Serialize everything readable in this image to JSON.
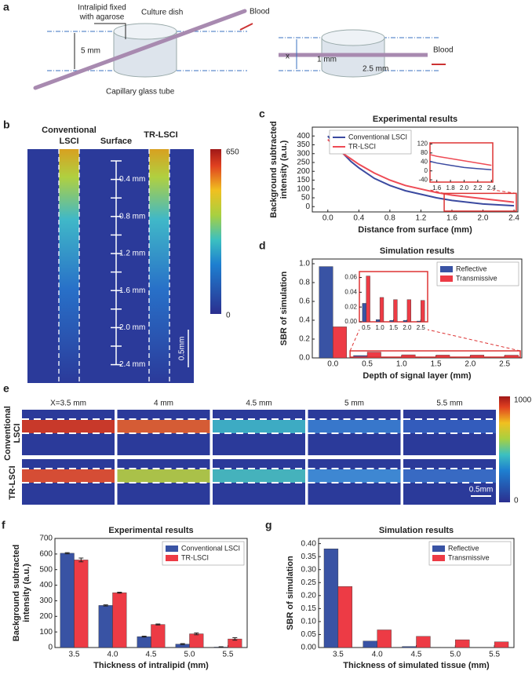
{
  "panel_a": {
    "label": "a",
    "agarose": [
      "Intralipid fixed",
      "with agarose"
    ],
    "dish": "Culture dish",
    "blood": "Blood",
    "thickness": "5 mm",
    "tube": "Capillary glass tube",
    "x": "x",
    "d1": "1 mm",
    "d2": "2.5 mm",
    "blood2": "Blood"
  },
  "panel_b": {
    "label": "b",
    "left": [
      "Conventional",
      "LSCI"
    ],
    "surface": "Surface",
    "right": "TR-LSCI",
    "depths": [
      "0.4 mm",
      "0.8 mm",
      "1.2 mm",
      "1.6 mm",
      "2.0 mm",
      "2.4 mm"
    ],
    "colorbar": [
      650,
      0
    ],
    "scale": "0.5mm"
  },
  "panel_e": {
    "label": "e",
    "columns": [
      "X=3.5 mm",
      "4 mm",
      "4.5 mm",
      "5 mm",
      "5.5 mm"
    ],
    "rows": [
      [
        "Conventional",
        "LSCI"
      ],
      [
        "TR-LSCI"
      ]
    ],
    "colorbar": [
      1000,
      0
    ],
    "scale": "0.5mm"
  },
  "chart_data": [
    {
      "type": "line",
      "label": "c",
      "title": "Experimental results",
      "ylabel": [
        "Background subtracted",
        "intensity (a.u.)"
      ],
      "xlabel": "Distance from surface (mm)",
      "x": [
        0,
        0.1,
        0.2,
        0.3,
        0.4,
        0.6,
        0.8,
        1.0,
        1.2,
        1.4,
        1.6,
        1.8,
        2.0,
        2.2,
        2.4
      ],
      "series": [
        {
          "name": "Conventional LSCI",
          "color": "#3b4aa0",
          "values": [
            400,
            350,
            300,
            255,
            220,
            160,
            120,
            90,
            70,
            50,
            35,
            25,
            15,
            10,
            5
          ]
        },
        {
          "name": "TR-LSCI",
          "color": "#ee4b55",
          "values": [
            380,
            340,
            300,
            270,
            240,
            190,
            150,
            120,
            100,
            80,
            65,
            55,
            45,
            35,
            25
          ]
        }
      ],
      "xlim": [
        -0.2,
        2.45
      ],
      "xticks": [
        {
          "value": 0,
          "label": "0.0"
        },
        0.4,
        0.8,
        1.2,
        1.6,
        {
          "value": 2,
          "label": "2.0"
        },
        2.4
      ],
      "ylim": [
        -30,
        450
      ],
      "yticks": [
        0,
        50,
        100,
        150,
        200,
        250,
        300,
        350,
        400
      ],
      "legend": "upper left",
      "inset": {
        "xlim": [
          1.5,
          2.42
        ],
        "xticks": [
          1.6,
          1.8,
          {
            "value": 2,
            "label": "2.0"
          },
          2.2,
          2.4
        ],
        "ylim": [
          -50,
          125
        ],
        "yticks": [
          -40,
          0,
          40,
          80,
          120
        ]
      }
    },
    {
      "type": "bar",
      "label": "d",
      "title": "Simulation results",
      "ylabel": [
        "SBR of simulation"
      ],
      "xlabel": "Depth of signal layer (mm)",
      "x": [
        0,
        0.5,
        1.0,
        1.5,
        2.0,
        2.5
      ],
      "series": [
        {
          "name": "Reflective",
          "color": "#3953a4",
          "values": [
            0.97,
            0.025,
            0.003,
            0.002,
            0.002,
            0.001
          ]
        },
        {
          "name": "Transmissive",
          "color": "#ed3b45",
          "values": [
            0.33,
            0.062,
            0.033,
            0.03,
            0.03,
            0.029
          ]
        }
      ],
      "xlim": [
        -0.3,
        2.75
      ],
      "xticks": [
        {
          "value": 0,
          "label": "0.0"
        },
        0.5,
        {
          "value": 1,
          "label": "1.0"
        },
        1.5,
        {
          "value": 2,
          "label": "2.0"
        },
        2.5
      ],
      "ylim": [
        0,
        1.05
      ],
      "yticks": [
        {
          "value": 0,
          "label": "0.0"
        },
        0.2,
        0.4,
        0.6,
        0.8,
        {
          "value": 1,
          "label": "1.0"
        }
      ],
      "legend": "upper right",
      "inset": {
        "xlim": [
          0.25,
          2.75
        ],
        "xticks": [
          0.5,
          {
            "value": 1,
            "label": "1.0"
          },
          1.5,
          {
            "value": 2,
            "label": "2.0"
          },
          2.5
        ],
        "ylim": [
          0,
          0.068
        ],
        "yticks": [
          {
            "value": 0,
            "label": "0.00"
          },
          {
            "value": 0.02,
            "label": "0.02"
          },
          {
            "value": 0.04,
            "label": "0.04"
          },
          {
            "value": 0.06,
            "label": "0.06"
          }
        ]
      }
    },
    {
      "type": "bar",
      "label": "f",
      "title": "Experimental results",
      "ylabel": [
        "Background subtracted",
        "intensity (a.u.)"
      ],
      "xlabel": "Thickness of intralipid (mm)",
      "categories": [
        "3.5",
        "4.0",
        "4.5",
        "5.0",
        "5.5"
      ],
      "series": [
        {
          "name": "Conventional LSCI",
          "color": "#3953a4",
          "values": [
            605,
            270,
            70,
            22,
            3
          ],
          "errors": [
            4,
            4,
            3,
            3,
            2
          ]
        },
        {
          "name": "TR-LSCI",
          "color": "#ed3b45",
          "values": [
            562,
            352,
            148,
            88,
            55
          ],
          "errors": [
            12,
            3,
            3,
            6,
            8
          ]
        }
      ],
      "ylim": [
        0,
        700
      ],
      "yticks": [
        0,
        100,
        200,
        300,
        400,
        500,
        600,
        700
      ],
      "legend": "upper right"
    },
    {
      "type": "bar",
      "label": "g",
      "title": "Simulation results",
      "ylabel": [
        "SBR of simulation"
      ],
      "xlabel": "Thickness of simulated tissue (mm)",
      "categories": [
        "3.5",
        "4.0",
        "4.5",
        "5.0",
        "5.5"
      ],
      "series": [
        {
          "name": "Reflective",
          "color": "#3953a4",
          "values": [
            0.38,
            0.025,
            0.004,
            0.001,
            0.001
          ]
        },
        {
          "name": "Transmissive",
          "color": "#ed3b45",
          "values": [
            0.235,
            0.068,
            0.043,
            0.03,
            0.022
          ]
        }
      ],
      "ylim": [
        0,
        0.42
      ],
      "yticks": [
        {
          "value": 0,
          "label": "0.00"
        },
        {
          "value": 0.05,
          "label": "0.05"
        },
        {
          "value": 0.1,
          "label": "0.10"
        },
        {
          "value": 0.15,
          "label": "0.15"
        },
        {
          "value": 0.2,
          "label": "0.20"
        },
        {
          "value": 0.25,
          "label": "0.25"
        },
        {
          "value": 0.3,
          "label": "0.30"
        },
        {
          "value": 0.35,
          "label": "0.35"
        },
        {
          "value": 0.4,
          "label": "0.40"
        }
      ],
      "legend": "upper right"
    }
  ]
}
